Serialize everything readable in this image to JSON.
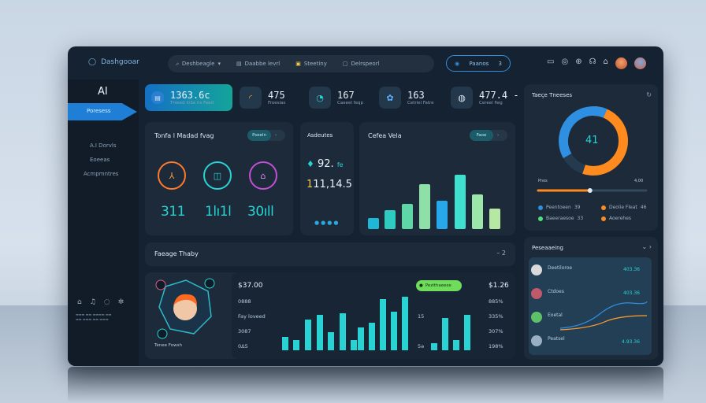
{
  "colors": {
    "accent_blue": "#1f7fd6",
    "accent_teal": "#29d3d3",
    "accent_orange": "#ff8a1e",
    "accent_green": "#4fe07a",
    "bg": "#152231"
  },
  "topbar": {
    "brand": "Dashgooar",
    "search_items": [
      "Deshbeagle",
      "Daabbe levrl",
      "Steetiny",
      "Delrspeorl"
    ],
    "pill_label": "Paanos",
    "pill_count": "3"
  },
  "sidebar": {
    "title": "AI",
    "active_item": "Poresess",
    "items": [
      "A.I Dorvls",
      "Eoeeas",
      "Acmpmntres"
    ]
  },
  "kpis": [
    {
      "value": "1363.6c",
      "label": "Tnieed lnSe hs Faed",
      "icon": "doc-icon"
    },
    {
      "value": "475",
      "label": "Froesias",
      "icon": "wifi-icon"
    },
    {
      "value": "167",
      "label": "Caeeel feqp",
      "icon": "gauge-icon"
    },
    {
      "value": "163",
      "label": "Cetriel Fatre",
      "icon": "gear-icon"
    },
    {
      "value": "477.4 -",
      "label": "Cereel fieg",
      "icon": "globe-icon"
    }
  ],
  "panel_rings": {
    "title": "Tonfa l Madad fvag",
    "toggle": "Pseeln",
    "values": [
      "311",
      "1lı1l",
      "30ıll"
    ]
  },
  "panel_assets": {
    "title": "Asdeutes",
    "value1": "92.",
    "value1_suffix": "fe",
    "value2": "11,14.5"
  },
  "panel_bars": {
    "title": "Cefea Vela",
    "toggle": "Faoe"
  },
  "panel_donut": {
    "title": "Taeçe Tneeses",
    "value": "41",
    "progress_label": "Pnos",
    "progress_value": "4,00",
    "progress": 0.48,
    "legend": [
      {
        "label": "Peentoeen",
        "value": "39",
        "color": "#2f8fe0"
      },
      {
        "label": "Deolie Fleat",
        "value": "46",
        "color": "#ff8a1e"
      },
      {
        "label": "Baeeraesoe",
        "value": "33",
        "color": "#4fe07a"
      },
      {
        "label": "Aoerehes",
        "value": "",
        "color": "#ff8a1e"
      }
    ]
  },
  "panel_wide": {
    "title": "Faeage Thaby",
    "right": "2"
  },
  "panel_profile": {
    "caption": "Tenee Fowsh"
  },
  "panel_main": {
    "left_rows": [
      "$37.00",
      "0888",
      "Fay loveed",
      "3087",
      "0Δ5"
    ],
    "badge": "Pezithaeese",
    "right_title": "$1.26",
    "right_rows": [
      "885%",
      "335%",
      "307%",
      "198%"
    ],
    "mid_rows": [
      "15",
      "5ǝ"
    ]
  },
  "panel_list": {
    "title": "Peseaaeing",
    "rows": [
      {
        "name": "Deetiloroe",
        "value": "403.36"
      },
      {
        "name": "Ctdoes",
        "value": "403.36"
      },
      {
        "name": "Eoetal",
        "value": ""
      },
      {
        "name": "Peatsel",
        "value": "4.93.36"
      }
    ]
  }
}
